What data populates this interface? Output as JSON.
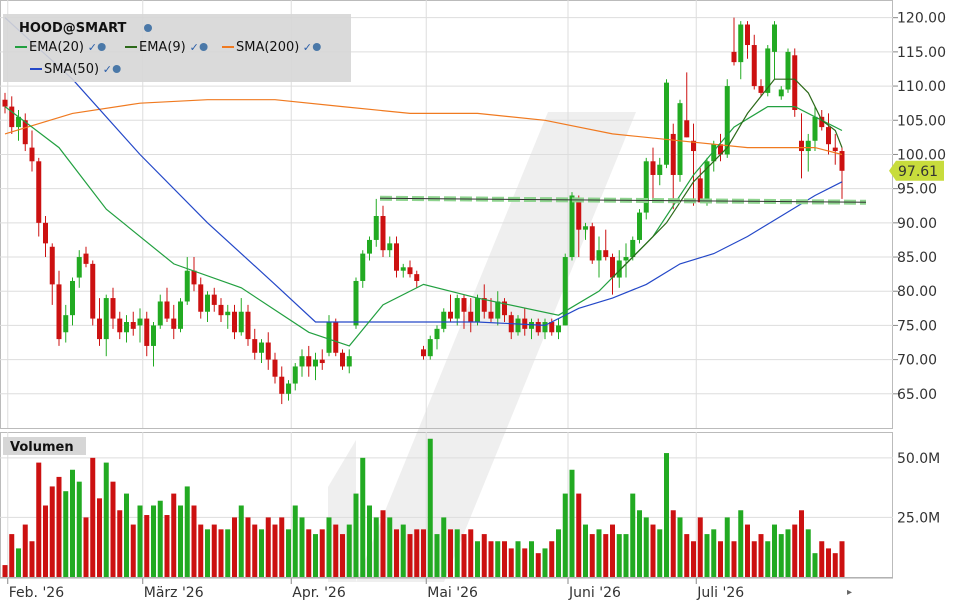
{
  "legend": {
    "title": "HOOD@SMART",
    "items": [
      {
        "label": "EMA(20)",
        "color": "#22a040"
      },
      {
        "label": "EMA(9)",
        "color": "#2d6a1a"
      },
      {
        "label": "SMA(200)",
        "color": "#f07a20"
      },
      {
        "label": "SMA(50)",
        "color": "#2448c8"
      }
    ]
  },
  "volume_label": "Volumen",
  "last_price": "97.61",
  "colors": {
    "up": "#22aa22",
    "down": "#cc1111",
    "support": "#8fd48f",
    "last_price_bg": "#c8dc3c"
  },
  "chart_data": {
    "type": "candlestick",
    "price_axis": {
      "min": 60,
      "max": 122,
      "ticks": [
        "65.00",
        "70.00",
        "75.00",
        "80.00",
        "85.00",
        "90.00",
        "95.00",
        "100.00",
        "105.00",
        "110.00",
        "115.00",
        "120.00"
      ]
    },
    "volume_axis": {
      "max": 60,
      "ticks": [
        "25.0M",
        "50.0M"
      ]
    },
    "x_labels": [
      "Feb. '26",
      "März '26",
      "Apr. '26",
      "Mai '26",
      "Juni '26",
      "Juli '26"
    ],
    "x_label_index": [
      1,
      21,
      43,
      63,
      84,
      103
    ],
    "support_level": 93.3,
    "candles": [
      [
        108.0,
        109.0,
        106.0,
        107.0,
        5
      ],
      [
        107.0,
        108.5,
        103.0,
        104.0,
        18
      ],
      [
        104.0,
        106.5,
        102.0,
        105.5,
        12
      ],
      [
        105.0,
        106.0,
        100.5,
        101.5,
        22
      ],
      [
        101.0,
        103.5,
        97.5,
        99.0,
        15
      ],
      [
        99.0,
        99.5,
        88.0,
        90.0,
        48
      ],
      [
        90.0,
        91.0,
        85.0,
        87.0,
        30
      ],
      [
        86.5,
        87.0,
        78.0,
        81.0,
        38
      ],
      [
        81.0,
        83.0,
        72.0,
        73.0,
        42
      ],
      [
        74.0,
        78.0,
        72.5,
        76.5,
        36
      ],
      [
        76.5,
        82.0,
        75.0,
        81.5,
        45
      ],
      [
        82.0,
        86.0,
        80.5,
        85.0,
        40
      ],
      [
        85.5,
        86.5,
        83.5,
        84.0,
        25
      ],
      [
        84.0,
        84.5,
        75.0,
        76.0,
        50
      ],
      [
        76.0,
        79.0,
        72.0,
        73.0,
        33
      ],
      [
        73.0,
        79.5,
        70.5,
        79.0,
        48
      ],
      [
        79.0,
        80.5,
        74.5,
        76.0,
        40
      ],
      [
        76.0,
        77.0,
        73.0,
        74.0,
        28
      ],
      [
        74.0,
        76.5,
        72.5,
        75.5,
        35
      ],
      [
        75.5,
        77.0,
        73.5,
        74.5,
        22
      ],
      [
        75.0,
        77.5,
        72.5,
        76.0,
        30
      ],
      [
        76.0,
        77.0,
        70.5,
        72.0,
        26
      ],
      [
        72.0,
        75.5,
        69.0,
        75.0,
        30
      ],
      [
        75.0,
        79.5,
        74.5,
        78.5,
        32
      ],
      [
        78.5,
        80.5,
        75.5,
        76.0,
        26
      ],
      [
        76.0,
        78.0,
        73.0,
        74.5,
        35
      ],
      [
        74.5,
        79.0,
        74.0,
        78.5,
        30
      ],
      [
        78.5,
        85.0,
        78.0,
        83.0,
        38
      ],
      [
        83.0,
        85.0,
        80.0,
        81.0,
        30
      ],
      [
        81.0,
        82.0,
        76.0,
        77.0,
        22
      ],
      [
        77.0,
        80.0,
        75.5,
        79.5,
        20
      ],
      [
        79.5,
        80.5,
        77.0,
        78.0,
        22
      ],
      [
        78.0,
        79.0,
        75.5,
        76.5,
        20
      ],
      [
        76.5,
        78.0,
        74.5,
        77.0,
        20
      ],
      [
        77.0,
        78.0,
        73.0,
        74.0,
        25
      ],
      [
        74.0,
        79.0,
        73.5,
        77.0,
        30
      ],
      [
        77.0,
        78.0,
        72.0,
        73.0,
        25
      ],
      [
        73.0,
        74.5,
        70.0,
        71.0,
        22
      ],
      [
        71.0,
        73.0,
        69.5,
        72.5,
        20
      ],
      [
        72.5,
        74.0,
        68.5,
        70.0,
        25
      ],
      [
        70.0,
        71.0,
        66.5,
        67.5,
        22
      ],
      [
        67.5,
        69.0,
        63.5,
        65.0,
        25
      ],
      [
        65.0,
        67.0,
        64.0,
        66.5,
        20
      ],
      [
        66.5,
        69.5,
        65.5,
        69.0,
        30
      ],
      [
        69.0,
        71.5,
        67.5,
        70.5,
        25
      ],
      [
        70.5,
        72.0,
        67.5,
        69.0,
        20
      ],
      [
        69.0,
        71.0,
        67.0,
        70.0,
        18
      ],
      [
        70.0,
        71.5,
        68.5,
        69.5,
        20
      ],
      [
        71.0,
        76.5,
        70.5,
        75.5,
        25
      ],
      [
        75.5,
        76.0,
        70.5,
        71.0,
        22
      ],
      [
        71.0,
        71.5,
        68.5,
        69.0,
        18
      ],
      [
        69.0,
        71.5,
        68.0,
        70.5,
        22
      ],
      [
        75.0,
        82.0,
        74.5,
        81.5,
        35
      ],
      [
        81.5,
        86.0,
        80.5,
        85.5,
        50
      ],
      [
        85.5,
        88.0,
        84.5,
        87.5,
        30
      ],
      [
        87.5,
        93.5,
        86.5,
        91.0,
        25
      ],
      [
        91.0,
        92.5,
        85.0,
        86.0,
        28
      ],
      [
        86.0,
        88.0,
        85.0,
        87.0,
        25
      ],
      [
        87.0,
        88.0,
        82.0,
        83.0,
        20
      ],
      [
        83.0,
        84.0,
        82.0,
        83.5,
        22
      ],
      [
        83.5,
        84.5,
        82.0,
        82.5,
        18
      ],
      [
        82.5,
        83.0,
        80.5,
        81.5,
        20
      ],
      [
        71.5,
        72.0,
        70.0,
        70.5,
        20
      ],
      [
        70.5,
        73.5,
        70.0,
        73.0,
        58
      ],
      [
        73.0,
        75.0,
        71.5,
        74.5,
        18
      ],
      [
        74.5,
        77.5,
        74.0,
        77.0,
        25
      ],
      [
        77.0,
        79.5,
        75.5,
        76.0,
        20
      ],
      [
        76.0,
        79.5,
        75.0,
        79.0,
        20
      ],
      [
        79.0,
        79.5,
        74.5,
        77.0,
        18
      ],
      [
        77.0,
        79.0,
        74.0,
        75.5,
        20
      ],
      [
        75.5,
        79.5,
        75.0,
        79.0,
        15
      ],
      [
        79.0,
        81.0,
        76.0,
        77.0,
        18
      ],
      [
        77.0,
        79.0,
        75.5,
        76.0,
        15
      ],
      [
        76.0,
        80.0,
        75.0,
        78.5,
        15
      ],
      [
        78.5,
        79.0,
        75.5,
        76.5,
        15
      ],
      [
        76.5,
        77.0,
        73.0,
        74.0,
        12
      ],
      [
        74.0,
        76.5,
        73.5,
        76.0,
        15
      ],
      [
        76.0,
        77.5,
        73.5,
        74.5,
        12
      ],
      [
        74.5,
        76.0,
        73.0,
        75.5,
        15
      ],
      [
        75.5,
        76.0,
        73.5,
        74.0,
        10
      ],
      [
        74.0,
        76.0,
        73.0,
        75.5,
        12
      ],
      [
        75.5,
        76.0,
        73.5,
        74.0,
        15
      ],
      [
        74.0,
        76.0,
        73.0,
        75.0,
        20
      ],
      [
        75.0,
        85.5,
        75.0,
        85.0,
        35
      ],
      [
        85.0,
        94.5,
        84.5,
        94.0,
        45
      ],
      [
        93.5,
        94.0,
        85.0,
        89.0,
        35
      ],
      [
        89.0,
        90.0,
        87.5,
        89.5,
        22
      ],
      [
        89.5,
        90.0,
        84.0,
        84.5,
        18
      ],
      [
        84.5,
        88.0,
        82.0,
        86.0,
        20
      ],
      [
        86.0,
        89.0,
        84.5,
        85.0,
        18
      ],
      [
        85.0,
        85.5,
        79.5,
        82.0,
        22
      ],
      [
        82.0,
        86.0,
        80.5,
        84.5,
        18
      ],
      [
        84.5,
        87.0,
        82.0,
        85.0,
        18
      ],
      [
        85.0,
        88.0,
        84.5,
        87.5,
        35
      ],
      [
        87.5,
        92.0,
        87.0,
        91.5,
        28
      ],
      [
        91.5,
        99.5,
        90.5,
        99.0,
        25
      ],
      [
        99.0,
        101.0,
        93.5,
        97.0,
        22
      ],
      [
        97.0,
        99.5,
        95.5,
        98.5,
        20
      ],
      [
        98.5,
        111.0,
        98.0,
        110.5,
        52
      ],
      [
        103.0,
        104.5,
        92.0,
        97.0,
        28
      ],
      [
        97.0,
        108.0,
        96.0,
        107.5,
        25
      ],
      [
        105.0,
        112.0,
        102.5,
        102.5,
        18
      ],
      [
        102.0,
        104.5,
        92.5,
        100.5,
        15
      ],
      [
        96.5,
        98.0,
        93.0,
        93.0,
        25
      ],
      [
        93.0,
        99.5,
        92.5,
        99.0,
        18
      ],
      [
        99.0,
        102.0,
        97.5,
        101.5,
        20
      ],
      [
        101.5,
        103.0,
        99.0,
        100.0,
        15
      ],
      [
        100.0,
        111.0,
        99.5,
        110.0,
        25
      ],
      [
        115.0,
        120.0,
        113.0,
        113.5,
        15
      ],
      [
        113.5,
        119.5,
        111.0,
        119.0,
        28
      ],
      [
        119.0,
        119.5,
        114.0,
        116.0,
        22
      ],
      [
        116.0,
        117.5,
        109.5,
        110.0,
        15
      ],
      [
        110.0,
        111.0,
        108.5,
        109.0,
        18
      ],
      [
        109.0,
        116.0,
        108.5,
        115.5,
        15
      ],
      [
        115.0,
        119.5,
        111.0,
        119.0,
        22
      ],
      [
        108.5,
        110.0,
        108.0,
        109.5,
        18
      ],
      [
        109.5,
        115.5,
        109.0,
        115.0,
        20
      ],
      [
        114.5,
        115.5,
        105.5,
        106.5,
        22
      ],
      [
        102.0,
        106.0,
        96.5,
        100.5,
        28
      ],
      [
        100.5,
        103.0,
        97.5,
        102.0,
        20
      ],
      [
        102.0,
        107.0,
        100.5,
        105.5,
        10
      ],
      [
        105.5,
        106.5,
        103.5,
        104.0,
        15
      ],
      [
        104.0,
        106.0,
        100.0,
        101.5,
        12
      ],
      [
        101.0,
        103.0,
        98.5,
        100.5,
        10
      ],
      [
        100.5,
        101.0,
        93.5,
        97.61,
        15
      ]
    ],
    "ema20": [
      [
        0,
        107
      ],
      [
        8,
        101
      ],
      [
        15,
        92
      ],
      [
        25,
        84
      ],
      [
        35,
        80.5
      ],
      [
        45,
        74
      ],
      [
        51,
        72
      ],
      [
        56,
        78
      ],
      [
        62,
        81
      ],
      [
        70,
        79
      ],
      [
        82,
        76.5
      ],
      [
        88,
        80
      ],
      [
        96,
        88
      ],
      [
        102,
        97
      ],
      [
        108,
        104
      ],
      [
        113,
        107
      ],
      [
        117,
        107
      ],
      [
        121,
        105
      ],
      [
        124,
        103.5
      ]
    ],
    "ema9": [
      [
        90,
        82
      ],
      [
        92,
        84
      ],
      [
        95,
        87
      ],
      [
        98,
        90
      ],
      [
        100,
        93
      ],
      [
        102,
        96
      ],
      [
        105,
        99
      ],
      [
        107,
        101
      ],
      [
        110,
        106
      ],
      [
        114,
        111
      ],
      [
        117,
        111
      ],
      [
        119,
        109
      ],
      [
        121,
        105
      ],
      [
        123,
        103.5
      ],
      [
        124,
        101
      ]
    ],
    "sma200": [
      [
        0,
        103
      ],
      [
        10,
        106
      ],
      [
        20,
        107.5
      ],
      [
        30,
        108
      ],
      [
        40,
        108
      ],
      [
        50,
        107
      ],
      [
        60,
        106
      ],
      [
        70,
        106
      ],
      [
        80,
        105
      ],
      [
        90,
        103
      ],
      [
        100,
        102
      ],
      [
        110,
        101
      ],
      [
        120,
        101
      ],
      [
        124,
        100
      ]
    ],
    "sma50": [
      [
        0,
        120
      ],
      [
        10,
        111
      ],
      [
        20,
        100
      ],
      [
        30,
        90
      ],
      [
        40,
        81
      ],
      [
        46,
        75.5
      ],
      [
        52,
        75.5
      ],
      [
        60,
        75.5
      ],
      [
        70,
        75.5
      ],
      [
        80,
        75
      ],
      [
        85,
        77.5
      ],
      [
        90,
        79
      ],
      [
        95,
        81
      ],
      [
        100,
        84
      ],
      [
        105,
        85.5
      ],
      [
        110,
        88
      ],
      [
        115,
        91
      ],
      [
        120,
        94
      ],
      [
        124,
        96
      ]
    ]
  }
}
